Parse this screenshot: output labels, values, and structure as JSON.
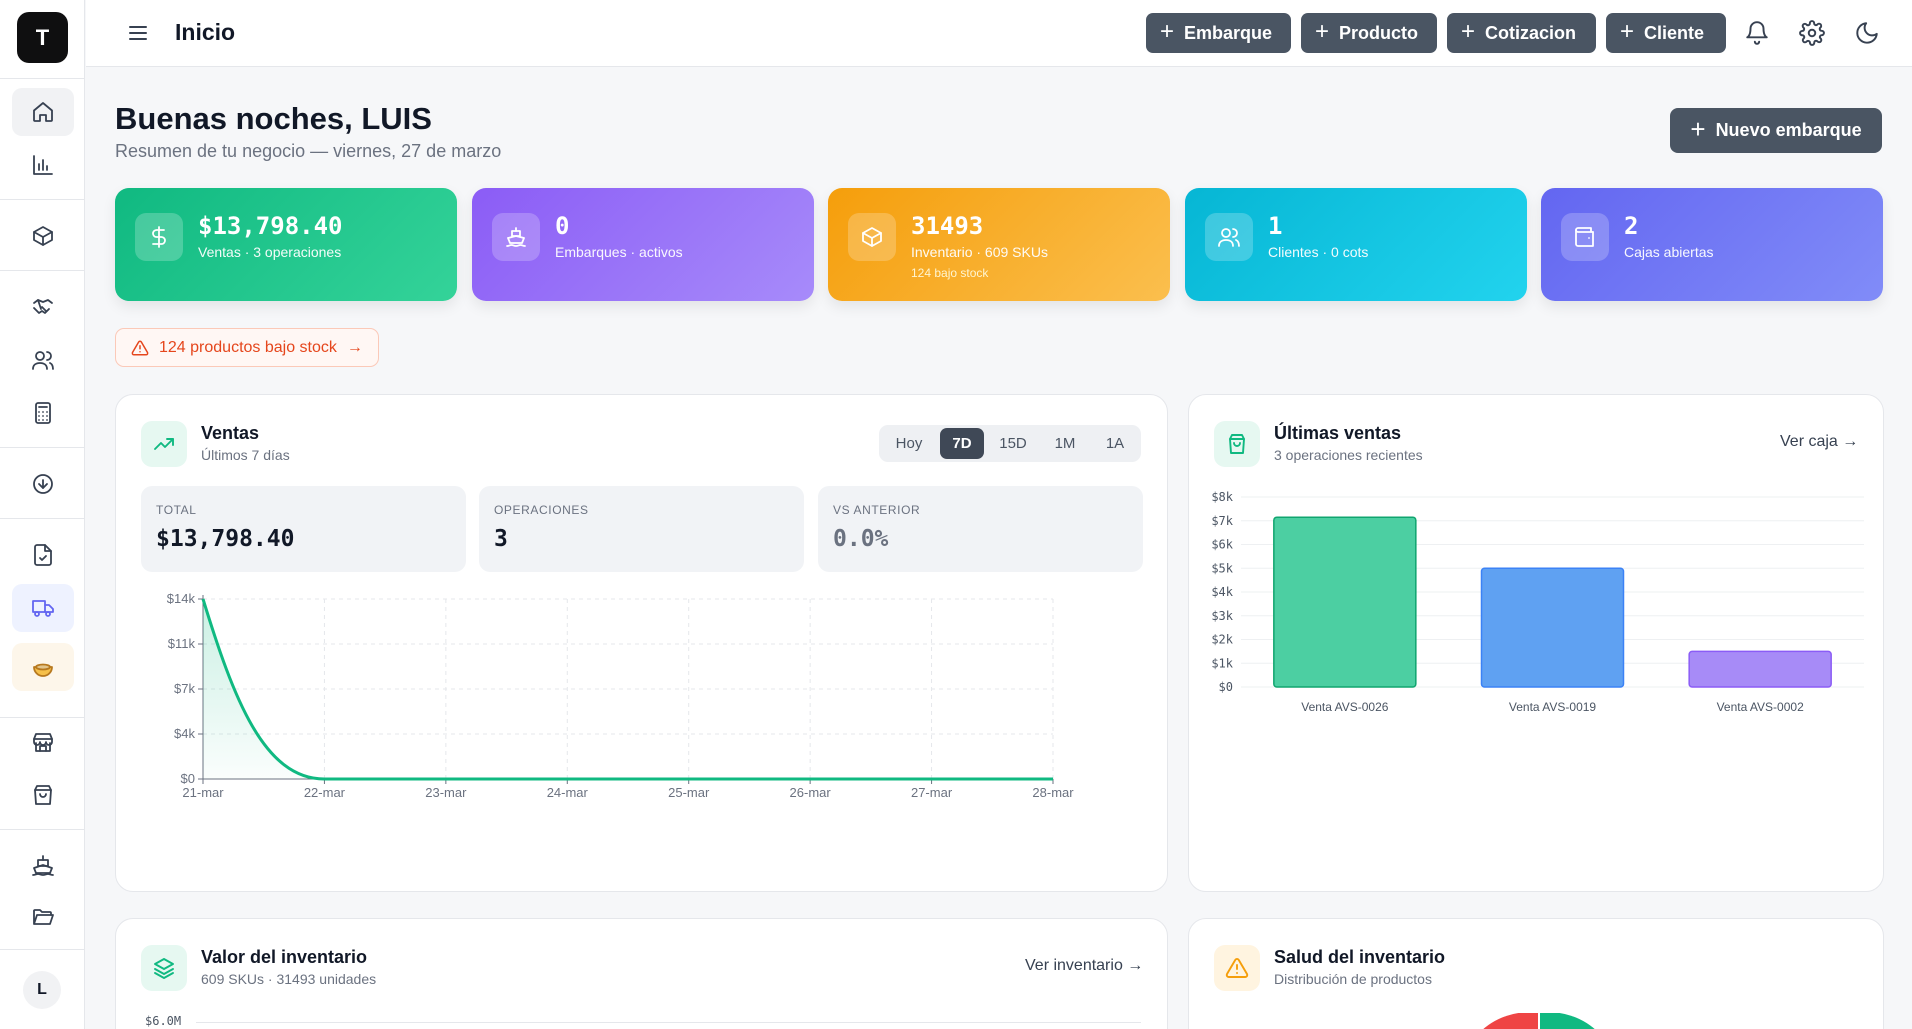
{
  "app": {
    "logo_letter": "T",
    "avatar_letter": "L"
  },
  "topbar": {
    "title": "Inicio",
    "quick_actions": [
      "Embarque",
      "Producto",
      "Cotizacion",
      "Cliente"
    ]
  },
  "greeting": {
    "title": "Buenas noches, LUIS",
    "subtitle": "Resumen de tu negocio — viernes, 27 de marzo",
    "new_button": "Nuevo embarque"
  },
  "stats": [
    {
      "value": "$13,798.40",
      "label": "Ventas · 3 operaciones",
      "extra": "",
      "icon": "dollar-icon",
      "color_from": "#10b981",
      "color_to": "#34d399"
    },
    {
      "value": "0",
      "label": "Embarques · activos",
      "extra": "",
      "icon": "ship-icon",
      "color_from": "#8b5cf6",
      "color_to": "#a78bfa"
    },
    {
      "value": "31493",
      "label": "Inventario · 609 SKUs",
      "extra": "124 bajo stock",
      "icon": "box-icon",
      "color_from": "#f59e0b",
      "color_to": "#fbbf4e"
    },
    {
      "value": "1",
      "label": "Clientes · 0 cots",
      "extra": "",
      "icon": "users-icon",
      "color_from": "#06b6d4",
      "color_to": "#22d3ee"
    },
    {
      "value": "2",
      "label": "Cajas abiertas",
      "extra": "",
      "icon": "wallet-icon",
      "color_from": "#6366f1",
      "color_to": "#818cf8"
    }
  ],
  "alert": {
    "text": "124 productos bajo stock"
  },
  "sales_panel": {
    "title": "Ventas",
    "subtitle": "Últimos 7 días",
    "ranges": [
      "Hoy",
      "7D",
      "15D",
      "1M",
      "1A"
    ],
    "active_range": "7D",
    "kpis": [
      {
        "label": "TOTAL",
        "value": "$13,798.40"
      },
      {
        "label": "OPERACIONES",
        "value": "3"
      },
      {
        "label": "VS ANTERIOR",
        "value": "0.0%"
      }
    ]
  },
  "recent_panel": {
    "title": "Últimas ventas",
    "subtitle": "3 operaciones recientes",
    "link": "Ver caja"
  },
  "inventory_panel": {
    "title": "Valor del inventario",
    "subtitle": "609 SKUs · 31493 unidades",
    "link": "Ver inventario",
    "y_tick_top": "$6.0M"
  },
  "health_panel": {
    "title": "Salud del inventario",
    "subtitle": "Distribución de productos"
  },
  "chart_data": [
    {
      "type": "area",
      "title": "Ventas",
      "x": [
        "21-mar",
        "22-mar",
        "23-mar",
        "24-mar",
        "25-mar",
        "26-mar",
        "27-mar",
        "28-mar"
      ],
      "values": [
        13798.4,
        0,
        0,
        0,
        0,
        0,
        0,
        0
      ],
      "yticks": [
        "$0",
        "$4k",
        "$7k",
        "$11k",
        "$14k"
      ],
      "ylim": [
        0,
        13798.4
      ],
      "color": "#10b981",
      "grid": true
    },
    {
      "type": "bar",
      "title": "Últimas ventas",
      "categories": [
        "Venta AVS-0026",
        "Venta AVS-0019",
        "Venta AVS-0002"
      ],
      "values": [
        7150,
        5000,
        1500
      ],
      "colors": [
        "#4ccfa2",
        "#5fa1f2",
        "#a78bf7"
      ],
      "borders": [
        "#10a56f",
        "#3b82f6",
        "#8b5cf6"
      ],
      "yticks": [
        "$0",
        "$1k",
        "$2k",
        "$3k",
        "$4k",
        "$5k",
        "$6k",
        "$7k",
        "$8k"
      ],
      "ylim": [
        0,
        8000
      ],
      "grid": true
    }
  ]
}
